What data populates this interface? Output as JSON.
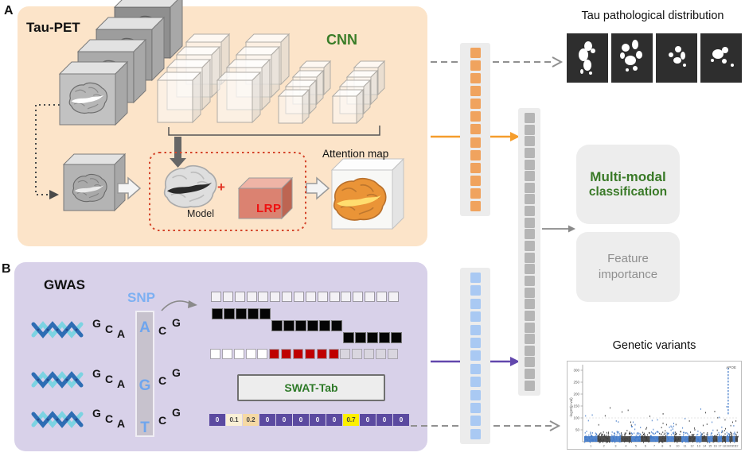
{
  "panel_a": {
    "label": "A",
    "title": "Tau-PET",
    "cnn_label": "CNN",
    "model_caption": "Model",
    "plus_sign": "+",
    "lrp_label": "LRP",
    "attention_title": "Attention map",
    "input_cube_count": 4,
    "cnn_cluster_count": 4
  },
  "panel_b": {
    "label": "B",
    "title": "GWAS",
    "snp_label": "SNP",
    "swat_label": "SWAT-Tab",
    "sequences": [
      {
        "letters": [
          "G",
          "C",
          "A",
          "A",
          "C",
          "G"
        ],
        "snp_index": 3
      },
      {
        "letters": [
          "G",
          "C",
          "A",
          "G",
          "C",
          "G"
        ],
        "snp_index": 3
      },
      {
        "letters": [
          "G",
          "C",
          "A",
          "T",
          "C",
          "G"
        ],
        "snp_index": 3
      }
    ],
    "matrix": {
      "top_row_count": 16,
      "window_rows": [
        {
          "start": 0,
          "count": 5
        },
        {
          "start": 5,
          "count": 6
        },
        {
          "start": 11,
          "count": 5
        }
      ],
      "bottom_row": [
        "white",
        "white",
        "white",
        "white",
        "white",
        "red",
        "red",
        "red",
        "red",
        "red",
        "red",
        "gray",
        "gray",
        "gray",
        "gray",
        "gray"
      ],
      "cell_colors": {
        "white": "#ffffff",
        "red": "#bf0000",
        "gray": "#d9d6df",
        "top": "#f3f1f5"
      }
    },
    "encoding_vector": [
      {
        "value": "0",
        "bg": "#5b4aa0",
        "fg": "#ffffff"
      },
      {
        "value": "0.1",
        "bg": "#faf0d6",
        "fg": "#444444"
      },
      {
        "value": "0.2",
        "bg": "#f6d9a4",
        "fg": "#444444"
      },
      {
        "value": "0",
        "bg": "#5b4aa0",
        "fg": "#ffffff"
      },
      {
        "value": "0",
        "bg": "#5b4aa0",
        "fg": "#ffffff"
      },
      {
        "value": "0",
        "bg": "#5b4aa0",
        "fg": "#ffffff"
      },
      {
        "value": "0",
        "bg": "#5b4aa0",
        "fg": "#ffffff"
      },
      {
        "value": "0",
        "bg": "#5b4aa0",
        "fg": "#ffffff"
      },
      {
        "value": "0.7",
        "bg": "#fdf000",
        "fg": "#444444"
      },
      {
        "value": "0",
        "bg": "#5b4aa0",
        "fg": "#ffffff"
      },
      {
        "value": "0",
        "bg": "#5b4aa0",
        "fg": "#ffffff"
      },
      {
        "value": "0",
        "bg": "#5b4aa0",
        "fg": "#ffffff"
      }
    ]
  },
  "feature_vectors": {
    "pet_cells": 13,
    "snp_cells": 13,
    "fused_cells": 24,
    "pet_color": "#f0a35e",
    "snp_color": "#a9c9f3",
    "fused_color": "#b5b5b5"
  },
  "outputs": {
    "tau_distribution_title": "Tau pathological distribution",
    "tau_map_count": 4,
    "multimodal_line1": "Multi-modal",
    "multimodal_line2": "classification",
    "feature_importance_line1": "Feature",
    "feature_importance_line2": "importance",
    "genetic_variants_title": "Genetic variants"
  },
  "colors": {
    "panel_a_bg": "#fce4c9",
    "panel_b_bg": "#d8d1e9",
    "green_accent": "#3a7d28",
    "orange_arrow": "#f59d2c",
    "purple_arrow": "#6247ad",
    "red_accent": "#e23222",
    "snp_blue": "#7db0f2",
    "lrp_box": "#db8271",
    "manhattan_blue": "#3f78c8",
    "manhattan_dark": "#3a3a3a"
  },
  "chart_data": {
    "type": "scatter",
    "title": "Genetic variants",
    "xlabel": "Chromosome",
    "ylabel": "-log10(p-val)",
    "ylim": [
      0,
      320
    ],
    "yticks": [
      50,
      100,
      150,
      200,
      250,
      300
    ],
    "grid": "threshold-line-at-100",
    "categories": [
      "1",
      "2",
      "3",
      "4",
      "5",
      "6",
      "7",
      "8",
      "9",
      "10",
      "11",
      "12",
      "13",
      "14",
      "15",
      "16",
      "17",
      "18",
      "19",
      "20",
      "21",
      "22"
    ],
    "rel_widths": [
      8,
      7.9,
      6.4,
      6.2,
      5.9,
      5.6,
      5.2,
      4.8,
      4.6,
      4.4,
      4.4,
      4.3,
      3.7,
      3.5,
      3.3,
      2.9,
      2.7,
      2.5,
      1.9,
      2.1,
      1.5,
      1.6
    ],
    "peak_values": [
      115,
      145,
      90,
      135,
      85,
      110,
      95,
      120,
      80,
      75,
      100,
      90,
      140,
      125,
      85,
      130,
      105,
      95,
      300,
      85,
      70,
      90
    ],
    "annotation": {
      "label": "APOE",
      "chromosome": "19",
      "value": 300
    },
    "series_colors_alternate": [
      "#3f78c8",
      "#3a3a3a"
    ]
  }
}
